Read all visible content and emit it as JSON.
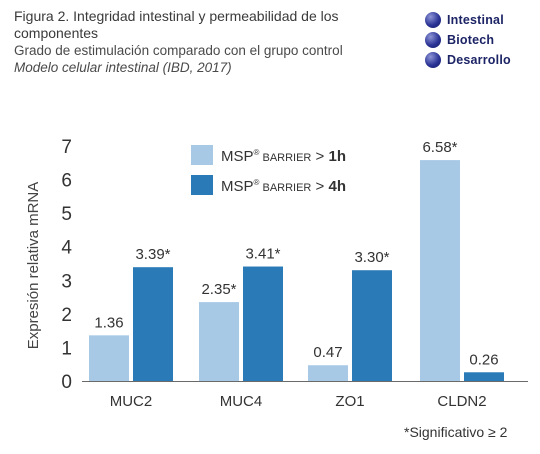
{
  "header": {
    "title": "Figura 2. Integridad intestinal y permeabilidad de los componentes",
    "subtitle": "Grado de estimulación comparado con el grupo control",
    "study": "Modelo celular intestinal (IBD, 2017)"
  },
  "logo": {
    "lines": [
      "Intestinal",
      "Biotech",
      "Desarrollo"
    ],
    "color": "#1c2466"
  },
  "chart_data": {
    "type": "bar",
    "ylabel": "Expresión relativa mRNA",
    "xlabel": "",
    "ylim": [
      0,
      7
    ],
    "yticks": [
      0,
      1,
      2,
      3,
      4,
      5,
      6,
      7
    ],
    "grid": false,
    "legend_position": "top-center",
    "categories": [
      "MUC2",
      "MUC4",
      "ZO1",
      "CLDN2"
    ],
    "series": [
      {
        "name": "MSP® BARRIER > 1h",
        "name_parts": {
          "brand": "MSP",
          "reg": "®",
          "product": "BARRIER",
          "rel": ">",
          "time": "1h"
        },
        "color": "#a7c9e6",
        "values": [
          1.36,
          2.35,
          0.47,
          6.58
        ],
        "labels": [
          "1.36",
          "2.35*",
          "0.47",
          "6.58*"
        ]
      },
      {
        "name": "MSP® BARRIER > 4h",
        "name_parts": {
          "brand": "MSP",
          "reg": "®",
          "product": "BARRIER",
          "rel": ">",
          "time": "4h"
        },
        "color": "#2a7ab8",
        "values": [
          3.39,
          3.41,
          3.3,
          0.26
        ],
        "labels": [
          "3.39*",
          "3.41*",
          "3.30*",
          "0.26"
        ]
      }
    ]
  },
  "footnote": "*Significativo ≥ 2"
}
